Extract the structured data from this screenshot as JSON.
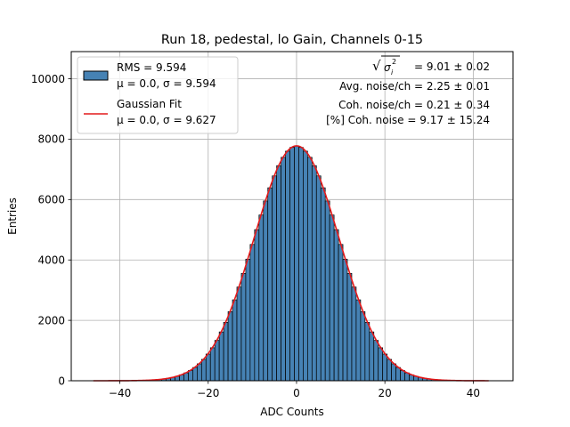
{
  "chart_data": {
    "type": "bar",
    "title": "Run 18, pedestal, lo Gain, Channels 0-15",
    "xlabel": "ADC Counts",
    "ylabel": "Entries",
    "xlim": [
      -51,
      49
    ],
    "ylim": [
      0,
      10900
    ],
    "xticks": [
      "−40",
      "−20",
      "0",
      "20",
      "40"
    ],
    "yticks": [
      "0",
      "2000",
      "4000",
      "6000",
      "8000",
      "10000"
    ],
    "grid": true,
    "legend_position": "top-left",
    "histogram": {
      "name": "RMS = 9.594",
      "name_line2": "μ = 0.0, σ = 9.594",
      "rms": 9.594,
      "mean": 0.0,
      "sigma": 9.594,
      "bin_width": 1,
      "bin_start": -45.5,
      "bin_end": 43.5,
      "peak_entries": 7770,
      "fill_color": "#4682b4",
      "edge_color": "#000000"
    },
    "fit": {
      "name": "Gaussian Fit",
      "name_line2": "μ = 0.0, σ = 9.627",
      "mean": 0.0,
      "sigma": 9.627,
      "amplitude": 7780,
      "x_range": [
        -46,
        43.5
      ],
      "color": "#e41a1c"
    },
    "annotations": {
      "total_noise_value": " = 9.01 ± 0.02",
      "avg_noise": "Avg. noise/ch = 2.25 ± 0.01",
      "coh_noise": "Coh. noise/ch = 0.21 ± 0.34",
      "pct_coh_noise": "[%] Coh. noise = 9.17 ± 15.24"
    }
  }
}
